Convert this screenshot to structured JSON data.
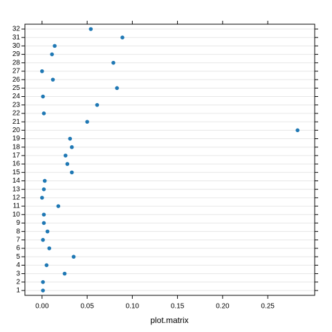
{
  "chart_data": {
    "type": "dot",
    "xlabel": "plot.matrix",
    "categories": [
      "1",
      "2",
      "3",
      "4",
      "5",
      "6",
      "7",
      "8",
      "9",
      "10",
      "11",
      "12",
      "13",
      "14",
      "15",
      "16",
      "17",
      "18",
      "19",
      "20",
      "21",
      "22",
      "23",
      "24",
      "25",
      "26",
      "27",
      "28",
      "29",
      "30",
      "31",
      "32"
    ],
    "values": [
      0.001,
      0.001,
      0.025,
      0.005,
      0.035,
      0.008,
      0.001,
      0.006,
      0.002,
      0.002,
      0.018,
      0.0,
      0.002,
      0.003,
      0.033,
      0.028,
      0.026,
      0.033,
      0.031,
      0.283,
      0.05,
      0.002,
      0.061,
      0.001,
      0.083,
      0.012,
      0.0,
      0.079,
      0.011,
      0.014,
      0.089,
      0.054
    ],
    "color": "#1f78b4",
    "xlim": [
      -0.019,
      0.302
    ],
    "xticks": [
      {
        "value": 0,
        "label": "0.00"
      },
      {
        "value": 0.05,
        "label": "0.05"
      },
      {
        "value": 0.1,
        "label": "0.10"
      },
      {
        "value": 0.15,
        "label": "0.15"
      },
      {
        "value": 0.2,
        "label": "0.20"
      },
      {
        "value": 0.25,
        "label": "0.25"
      }
    ],
    "grid": true
  }
}
